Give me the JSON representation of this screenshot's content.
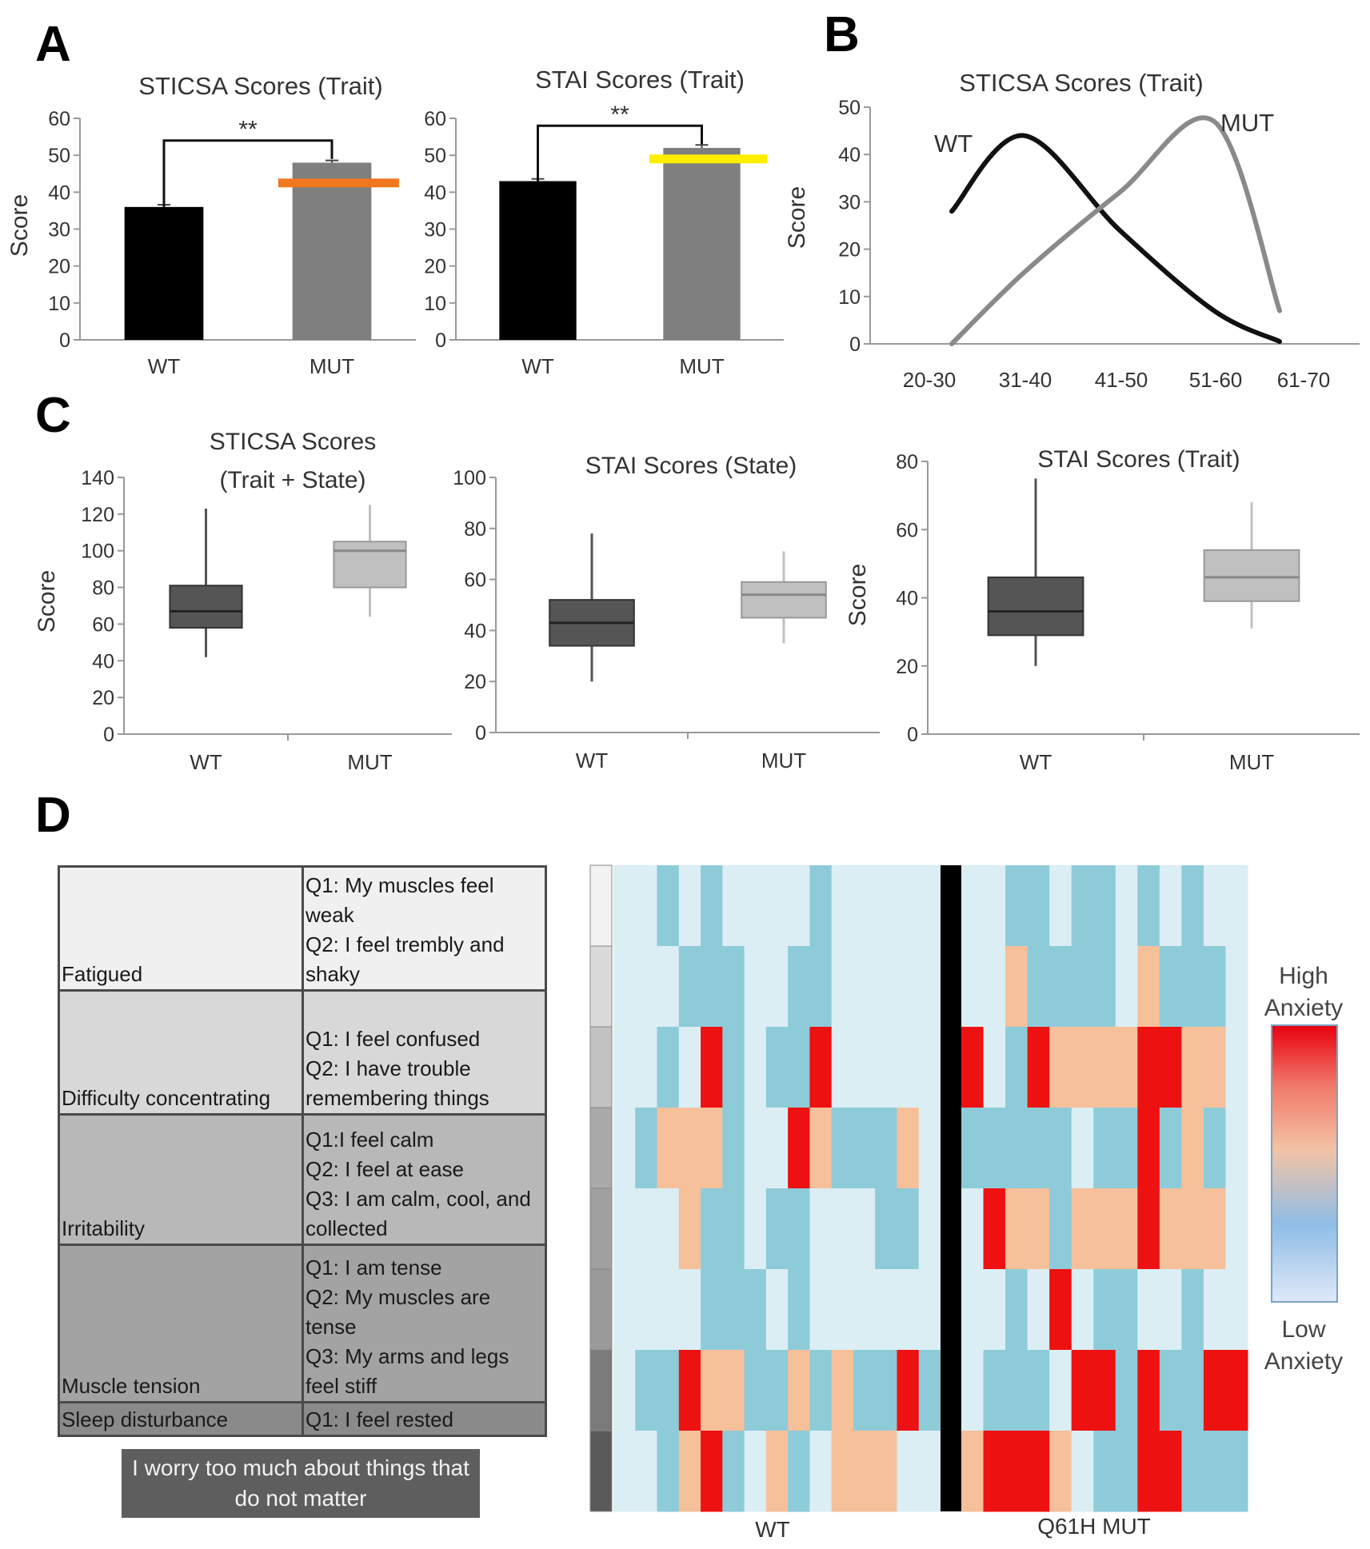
{
  "panels": {
    "A": {
      "label": "A",
      "charts": [
        {
          "title": "STICSA Scores (Trait)",
          "ylabel": "Score",
          "significance": "**"
        },
        {
          "title": "STAI Scores (Trait)",
          "ylabel": "",
          "significance": "**"
        }
      ]
    },
    "B": {
      "label": "B",
      "title": "STICSA Scores (Trait)",
      "ylabel": "Score"
    },
    "C": {
      "label": "C",
      "charts": [
        {
          "title_line1": "STICSA Scores",
          "title_line2": "(Trait + State)",
          "ylabel": "Score"
        },
        {
          "title_line1": "STAI Scores (State)",
          "title_line2": "",
          "ylabel": ""
        },
        {
          "title_line1": "STAI Scores (Trait)",
          "title_line2": "",
          "ylabel": "Score"
        }
      ]
    },
    "D": {
      "label": "D",
      "table": [
        {
          "category": "Fatigued",
          "questions": "Q1: My muscles feel weak\nQ2: I feel trembly and shaky"
        },
        {
          "category": "Difficulty concentrating",
          "questions": "Q1: I feel confused\nQ2: I have trouble remembering things"
        },
        {
          "category": "Irritability",
          "questions": "Q1:I feel calm\nQ2: I feel at ease\nQ3: I am calm, cool, and collected"
        },
        {
          "category": "Muscle tension",
          "questions": "Q1: I am tense\nQ2: My muscles are tense\nQ3: My arms and legs feel stiff"
        },
        {
          "category": "Sleep disturbance",
          "questions": "Q1: I feel rested"
        }
      ],
      "worry_item": "I worry too much about things that do not matter",
      "heatmap_xlabels": [
        "WT",
        "Q61H MUT"
      ],
      "legend_high_line1": "High",
      "legend_high_line2": "Anxiety",
      "legend_low_line1": "Low",
      "legend_low_line2": "Anxiety"
    }
  },
  "colors": {
    "wt_bar": "#000000",
    "mut_bar": "#7f7f7f",
    "sticsa_ref": "#f07820",
    "stai_ref": "#ffee00",
    "wt_box": "#555555",
    "mut_box": "#c0c0c0",
    "heat_low": "#dbeef4",
    "heat_lowmid": "#8ecbd9",
    "heat_mid": "#f6c09b",
    "heat_high": "#ee1111"
  },
  "chart_data": [
    {
      "type": "bar",
      "title": "STICSA Scores (Trait)",
      "xlabel": "",
      "ylabel": "Score",
      "categories": [
        "WT",
        "MUT"
      ],
      "values": [
        36,
        48
      ],
      "errors": [
        0.6,
        0.6
      ],
      "reference_line": 42.5,
      "significance": "**",
      "ylim": [
        0,
        60
      ],
      "yticks": [
        0,
        10,
        20,
        30,
        40,
        50,
        60
      ]
    },
    {
      "type": "bar",
      "title": "STAI Scores (Trait)",
      "xlabel": "",
      "ylabel": "",
      "categories": [
        "WT",
        "MUT"
      ],
      "values": [
        43,
        52
      ],
      "errors": [
        0.6,
        0.8
      ],
      "reference_line": 49,
      "significance": "**",
      "ylim": [
        0,
        60
      ],
      "yticks": [
        0,
        10,
        20,
        30,
        40,
        50,
        60
      ]
    },
    {
      "type": "line",
      "title": "STICSA Scores (Trait)",
      "xlabel": "",
      "ylabel": "Score",
      "categories": [
        "20-30",
        "31-40",
        "41-50",
        "51-60",
        "61-70"
      ],
      "series": [
        {
          "name": "WT",
          "values": [
            28,
            44,
            24,
            7,
            0.5
          ]
        },
        {
          "name": "MUT",
          "values": [
            0,
            15,
            32,
            47,
            7
          ]
        }
      ],
      "ylim": [
        0,
        50
      ],
      "yticks": [
        0,
        10,
        20,
        30,
        40,
        50
      ]
    },
    {
      "type": "box",
      "title": "STICSA Scores (Trait + State)",
      "ylabel": "Score",
      "categories": [
        "WT",
        "MUT"
      ],
      "boxes": [
        {
          "min": 42,
          "q1": 58,
          "median": 67,
          "q3": 81,
          "max": 123
        },
        {
          "min": 64,
          "q1": 80,
          "median": 100,
          "q3": 105,
          "max": 125
        }
      ],
      "ylim": [
        0,
        140
      ],
      "yticks": [
        0,
        20,
        40,
        60,
        80,
        100,
        120,
        140
      ]
    },
    {
      "type": "box",
      "title": "STAI Scores (State)",
      "ylabel": "",
      "categories": [
        "WT",
        "MUT"
      ],
      "boxes": [
        {
          "min": 20,
          "q1": 34,
          "median": 43,
          "q3": 52,
          "max": 78
        },
        {
          "min": 35,
          "q1": 45,
          "median": 54,
          "q3": 59,
          "max": 71
        }
      ],
      "ylim": [
        0,
        100
      ],
      "yticks": [
        0,
        20,
        40,
        60,
        80,
        100
      ]
    },
    {
      "type": "box",
      "title": "STAI Scores (Trait)",
      "ylabel": "Score",
      "categories": [
        "WT",
        "MUT"
      ],
      "boxes": [
        {
          "min": 20,
          "q1": 29,
          "median": 36,
          "q3": 46,
          "max": 75
        },
        {
          "min": 31,
          "q1": 39,
          "median": 46,
          "q3": 54,
          "max": 68
        }
      ],
      "ylim": [
        0,
        80
      ],
      "yticks": [
        0,
        20,
        40,
        60,
        80
      ]
    },
    {
      "type": "heatmap",
      "title": "",
      "groups": [
        {
          "name": "WT",
          "columns": 15
        },
        {
          "name": "Q61H MUT",
          "columns": 13
        }
      ],
      "row_groups": [
        "Fatigued",
        "Fatigued",
        "Difficulty concentrating",
        "Irritability",
        "Irritability",
        "Muscle tension",
        "Sleep disturbance",
        "Worry"
      ],
      "scale": "0 = low anxiety, 3 = high anxiety",
      "values": [
        [
          0,
          0,
          1,
          0,
          1,
          0,
          0,
          0,
          0,
          1,
          0,
          0,
          0,
          0,
          0,
          0,
          0,
          1,
          1,
          0,
          1,
          1,
          0,
          1,
          0,
          1,
          0,
          0
        ],
        [
          0,
          0,
          0,
          1,
          1,
          1,
          0,
          0,
          1,
          1,
          0,
          0,
          0,
          0,
          0,
          0,
          0,
          2,
          1,
          1,
          1,
          1,
          0,
          2,
          1,
          1,
          1,
          0
        ],
        [
          0,
          0,
          1,
          0,
          3,
          1,
          0,
          1,
          1,
          3,
          0,
          0,
          0,
          0,
          0,
          3,
          0,
          1,
          3,
          2,
          2,
          2,
          2,
          3,
          3,
          2,
          2,
          0
        ],
        [
          0,
          1,
          2,
          2,
          2,
          1,
          0,
          0,
          3,
          2,
          1,
          1,
          1,
          2,
          0,
          1,
          1,
          1,
          1,
          1,
          0,
          1,
          1,
          3,
          1,
          2,
          1,
          0
        ],
        [
          0,
          0,
          0,
          2,
          1,
          1,
          0,
          1,
          1,
          0,
          0,
          0,
          1,
          1,
          0,
          0,
          3,
          2,
          2,
          1,
          2,
          2,
          2,
          3,
          2,
          2,
          2,
          0
        ],
        [
          0,
          0,
          0,
          0,
          1,
          1,
          1,
          0,
          1,
          0,
          0,
          0,
          0,
          0,
          0,
          0,
          0,
          1,
          0,
          3,
          0,
          1,
          1,
          0,
          0,
          1,
          0,
          0
        ],
        [
          0,
          1,
          1,
          3,
          2,
          2,
          1,
          1,
          2,
          1,
          2,
          1,
          1,
          3,
          1,
          0,
          1,
          1,
          1,
          0,
          3,
          3,
          1,
          3,
          1,
          1,
          3,
          3
        ],
        [
          0,
          0,
          1,
          2,
          3,
          1,
          0,
          2,
          1,
          0,
          2,
          2,
          2,
          0,
          0,
          2,
          3,
          3,
          3,
          2,
          0,
          1,
          1,
          3,
          3,
          1,
          1,
          1
        ]
      ]
    }
  ]
}
